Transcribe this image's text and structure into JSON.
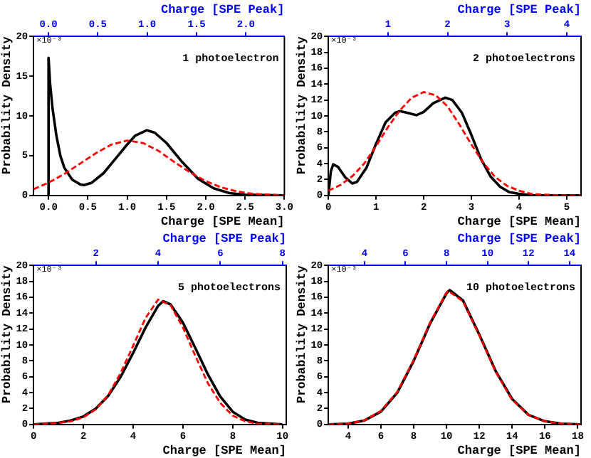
{
  "chart_data": [
    {
      "type": "line",
      "title": "1 photoelectron",
      "xlabel": "Charge [SPE Mean]",
      "x2label": "Charge [SPE Peak]",
      "ylabel": "Probability Density",
      "annotations": [
        "×10⁻³"
      ],
      "marker": "none",
      "xlim": [
        -0.19,
        3.0
      ],
      "xticks": [
        {
          "value": 0,
          "label": "0.0"
        },
        {
          "value": 0.5,
          "label": "0.5"
        },
        {
          "value": 1,
          "label": "1.0"
        },
        {
          "value": 1.5,
          "label": "1.5"
        },
        {
          "value": 2,
          "label": "2.0"
        },
        {
          "value": 2.5,
          "label": "2.5"
        },
        {
          "value": 3,
          "label": "3.0"
        }
      ],
      "x2lim": [
        -0.15,
        2.39
      ],
      "x2ticks": [
        {
          "value": 0,
          "label": "0.0"
        },
        {
          "value": 0.5,
          "label": "0.5"
        },
        {
          "value": 1,
          "label": "1.0"
        },
        {
          "value": 1.5,
          "label": "1.5"
        },
        {
          "value": 2,
          "label": "2.0"
        }
      ],
      "ylim": [
        0,
        20
      ],
      "yticks": [
        0,
        5,
        10,
        15,
        20
      ],
      "series": [
        {
          "color": "#000000",
          "line_style": "solid",
          "x": [
            0,
            0,
            0.02,
            0.05,
            0.1,
            0.15,
            0.2,
            0.3,
            0.4,
            0.45,
            0.55,
            0.7,
            0.85,
            1.0,
            1.1,
            1.25,
            1.35,
            1.5,
            1.7,
            1.9,
            2.1,
            2.3,
            2.5,
            3.0
          ],
          "values": [
            0,
            17.3,
            14,
            11,
            7.5,
            5,
            3.5,
            2,
            1.4,
            1.3,
            1.6,
            2.8,
            4.6,
            6.4,
            7.5,
            8.2,
            7.9,
            6.6,
            4.2,
            2.1,
            0.9,
            0.3,
            0.1,
            0
          ]
        },
        {
          "color": "#ff0000",
          "line_style": "dashed",
          "x": [
            -0.19,
            0,
            0.2,
            0.4,
            0.6,
            0.8,
            1.0,
            1.2,
            1.4,
            1.6,
            1.8,
            2.0,
            2.2,
            2.4,
            2.6,
            2.8,
            3.0
          ],
          "values": [
            0.8,
            1.6,
            2.7,
            4.0,
            5.3,
            6.4,
            6.9,
            6.6,
            5.6,
            4.2,
            2.9,
            1.8,
            1.0,
            0.5,
            0.2,
            0.1,
            0
          ]
        }
      ]
    },
    {
      "type": "line",
      "title": "2 photoelectrons",
      "xlabel": "Charge [SPE Mean]",
      "x2label": "Charge [SPE Peak]",
      "ylabel": "Probability Density",
      "annotations": [
        "×10⁻³"
      ],
      "marker": "none",
      "xlim": [
        0,
        5.3
      ],
      "xticks": [
        0,
        1,
        2,
        3,
        4,
        5
      ],
      "x2lim": [
        0,
        4.24
      ],
      "x2ticks": [
        1,
        2,
        3,
        4
      ],
      "ylim": [
        0,
        20
      ],
      "yticks": [
        0,
        2,
        4,
        6,
        8,
        10,
        12,
        14,
        16,
        18,
        20
      ],
      "series": [
        {
          "color": "#000000",
          "line_style": "solid",
          "x": [
            0,
            0.05,
            0.1,
            0.2,
            0.35,
            0.5,
            0.6,
            0.8,
            1.0,
            1.2,
            1.4,
            1.5,
            1.65,
            1.85,
            2.0,
            2.2,
            2.45,
            2.6,
            2.8,
            3.0,
            3.2,
            3.4,
            3.6,
            3.8,
            4.0,
            4.3,
            5.3
          ],
          "values": [
            0,
            3,
            3.9,
            3.6,
            2.3,
            1.5,
            1.7,
            3.5,
            6.5,
            9.2,
            10.4,
            10.6,
            10.4,
            10.1,
            10.5,
            11.6,
            12.3,
            12.0,
            10.4,
            7.6,
            4.6,
            2.4,
            1.1,
            0.4,
            0.2,
            0,
            0
          ]
        },
        {
          "color": "#ff0000",
          "line_style": "dashed",
          "x": [
            0,
            0.25,
            0.5,
            0.75,
            1.0,
            1.25,
            1.5,
            1.75,
            2.0,
            2.25,
            2.5,
            2.75,
            3.0,
            3.25,
            3.5,
            3.75,
            4.0,
            4.25,
            4.5,
            5.0,
            5.3
          ],
          "values": [
            0.6,
            1.3,
            2.4,
            4.0,
            6.2,
            8.6,
            10.7,
            12.3,
            13.0,
            12.6,
            11.2,
            8.9,
            6.4,
            4.1,
            2.3,
            1.2,
            0.6,
            0.2,
            0.1,
            0,
            0
          ]
        }
      ]
    },
    {
      "type": "line",
      "title": "5 photoelectrons",
      "xlabel": "Charge [SPE Mean]",
      "x2label": "Charge [SPE Peak]",
      "ylabel": "Probability Density",
      "annotations": [
        "×10⁻³"
      ],
      "marker": "none",
      "xlim": [
        0,
        10.15
      ],
      "xticks": [
        0,
        2,
        4,
        6,
        8,
        10
      ],
      "x2lim": [
        0,
        8.12
      ],
      "x2ticks": [
        2,
        4,
        6,
        8
      ],
      "ylim": [
        0,
        20
      ],
      "yticks": [
        0,
        2,
        4,
        6,
        8,
        10,
        12,
        14,
        16,
        18,
        20
      ],
      "series": [
        {
          "color": "#000000",
          "line_style": "solid",
          "x": [
            0,
            1,
            1.5,
            2,
            2.5,
            3,
            3.5,
            4,
            4.5,
            5,
            5.2,
            5.5,
            6,
            6.5,
            7,
            7.5,
            8,
            8.5,
            9,
            10
          ],
          "values": [
            0,
            0.2,
            0.5,
            1.0,
            2.0,
            3.6,
            6.0,
            9.0,
            12.2,
            14.9,
            15.5,
            15.1,
            12.8,
            9.6,
            6.3,
            3.5,
            1.6,
            0.6,
            0.2,
            0
          ]
        },
        {
          "color": "#ff0000",
          "line_style": "dashed",
          "x": [
            0,
            1,
            1.5,
            2,
            2.5,
            3,
            3.5,
            4,
            4.5,
            5,
            5.5,
            6,
            6.5,
            7,
            7.5,
            8,
            8.5,
            9,
            10
          ],
          "values": [
            0,
            0.2,
            0.4,
            0.9,
            1.9,
            3.7,
            6.5,
            9.9,
            13.4,
            15.7,
            15.0,
            12.2,
            8.6,
            5.2,
            2.7,
            1.1,
            0.4,
            0.1,
            0
          ]
        }
      ]
    },
    {
      "type": "line",
      "title": "10 photoelectrons",
      "xlabel": "Charge [SPE Mean]",
      "x2label": "Charge [SPE Peak]",
      "ylabel": "Probability Density",
      "annotations": [
        "×10⁻³"
      ],
      "marker": "none",
      "xlim": [
        2.8,
        18.2
      ],
      "xticks": [
        4,
        6,
        8,
        10,
        12,
        14,
        16,
        18
      ],
      "x2lim": [
        2.24,
        14.56
      ],
      "x2ticks": [
        4,
        6,
        8,
        10,
        12,
        14
      ],
      "ylim": [
        0,
        20
      ],
      "yticks": [
        0,
        2,
        4,
        6,
        8,
        10,
        12,
        14,
        16,
        18,
        20
      ],
      "series": [
        {
          "color": "#000000",
          "line_style": "solid",
          "x": [
            2.8,
            4,
            5,
            6,
            7,
            8,
            9,
            10,
            10.2,
            11,
            12,
            13,
            14,
            15,
            16,
            17,
            18.2
          ],
          "values": [
            0,
            0.1,
            0.5,
            1.6,
            4.0,
            8.0,
            12.7,
            16.5,
            16.9,
            15.6,
            11.3,
            6.7,
            3.2,
            1.2,
            0.4,
            0.1,
            0
          ]
        },
        {
          "color": "#ff0000",
          "line_style": "dashed",
          "x": [
            2.8,
            4,
            5,
            6,
            7,
            8,
            9,
            10,
            10.1,
            11,
            12,
            13,
            14,
            15,
            16,
            17,
            18.2
          ],
          "values": [
            0,
            0.1,
            0.5,
            1.7,
            4.1,
            8.1,
            12.8,
            16.6,
            16.8,
            15.5,
            11.2,
            6.6,
            3.1,
            1.2,
            0.4,
            0.1,
            0
          ]
        }
      ]
    }
  ]
}
